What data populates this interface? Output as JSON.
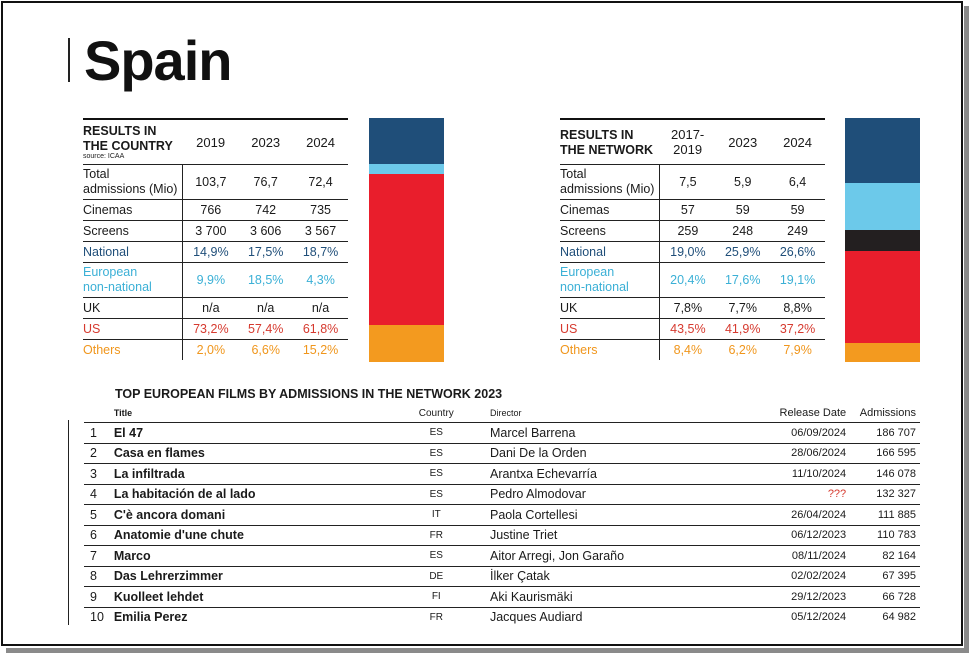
{
  "page": {
    "title": "Spain"
  },
  "country_table": {
    "header": [
      "RESULTS IN",
      "THE COUNTRY"
    ],
    "source": "source: ICAA",
    "years": [
      "2019",
      "2023",
      "2024"
    ],
    "rows": [
      {
        "label": [
          "Total",
          "admissions (Mio)"
        ],
        "values": [
          "103,7",
          "76,7",
          "72,4"
        ],
        "style": "plain"
      },
      {
        "label": [
          "Cinemas"
        ],
        "values": [
          "766",
          "742",
          "735"
        ],
        "style": "plain"
      },
      {
        "label": [
          "Screens"
        ],
        "values": [
          "3 700",
          "3 606",
          "3 567"
        ],
        "style": "plain"
      },
      {
        "label": [
          "National"
        ],
        "values": [
          "14,9%",
          "17,5%",
          "18,7%"
        ],
        "style": "nat"
      },
      {
        "label": [
          "European",
          "non-national"
        ],
        "values": [
          "9,9%",
          "18,5%",
          "4,3%"
        ],
        "style": "eu"
      },
      {
        "label": [
          "UK"
        ],
        "values": [
          "n/a",
          "n/a",
          "n/a"
        ],
        "style": "plain"
      },
      {
        "label": [
          "US"
        ],
        "values": [
          "73,2%",
          "57,4%",
          "61,8%"
        ],
        "style": "us"
      },
      {
        "label": [
          "Others"
        ],
        "values": [
          "2,0%",
          "6,6%",
          "15,2%"
        ],
        "style": "oth"
      }
    ]
  },
  "network_table": {
    "header": [
      "RESULTS IN",
      "THE NETWORK"
    ],
    "years": [
      [
        "2017-",
        "2019"
      ],
      [
        "2023"
      ],
      [
        "2024"
      ]
    ],
    "rows": [
      {
        "label": [
          "Total",
          "admissions (Mio)"
        ],
        "values": [
          "7,5",
          "5,9",
          "6,4"
        ],
        "style": "plain"
      },
      {
        "label": [
          "Cinemas"
        ],
        "values": [
          "57",
          "59",
          "59"
        ],
        "style": "plain"
      },
      {
        "label": [
          "Screens"
        ],
        "values": [
          "259",
          "248",
          "249"
        ],
        "style": "plain"
      },
      {
        "label": [
          "National"
        ],
        "values": [
          "19,0%",
          "25,9%",
          "26,6%"
        ],
        "style": "nat"
      },
      {
        "label": [
          "European",
          "non-national"
        ],
        "values": [
          "20,4%",
          "17,6%",
          "19,1%"
        ],
        "style": "eu"
      },
      {
        "label": [
          "UK"
        ],
        "values": [
          "7,8%",
          "7,7%",
          "8,8%"
        ],
        "style": "plain"
      },
      {
        "label": [
          "US"
        ],
        "values": [
          "43,5%",
          "41,9%",
          "37,2%"
        ],
        "style": "us"
      },
      {
        "label": [
          "Others"
        ],
        "values": [
          "8,4%",
          "6,2%",
          "7,9%"
        ],
        "style": "oth"
      }
    ]
  },
  "colors": {
    "national": "#1f4e79",
    "european": "#6cc9ea",
    "uk": "#231f20",
    "us": "#e91e2c",
    "others": "#f39a1f"
  },
  "stacked_bars": {
    "country": [
      {
        "segment": "national",
        "share": 18.7
      },
      {
        "segment": "european",
        "share": 4.3
      },
      {
        "segment": "us",
        "share": 61.8
      },
      {
        "segment": "others",
        "share": 15.2
      }
    ],
    "network": [
      {
        "segment": "national",
        "share": 26.6
      },
      {
        "segment": "european",
        "share": 19.1
      },
      {
        "segment": "uk",
        "share": 8.8
      },
      {
        "segment": "us",
        "share": 37.2
      },
      {
        "segment": "others",
        "share": 7.9
      }
    ]
  },
  "films": {
    "heading": "TOP EUROPEAN FILMS BY ADMISSIONS IN THE NETWORK 2023",
    "columns": {
      "title": "Title",
      "country": "Country",
      "director": "Director",
      "release": "Release Date",
      "admissions": "Admissions"
    },
    "rows": [
      {
        "rank": "1",
        "title": "El 47",
        "country": "ES",
        "director": "Marcel Barrena",
        "release": "06/09/2024",
        "admissions": "186 707"
      },
      {
        "rank": "2",
        "title": "Casa en flames",
        "country": "ES",
        "director": "Dani De la Orden",
        "release": "28/06/2024",
        "admissions": "166 595"
      },
      {
        "rank": "3",
        "title": "La infiltrada",
        "country": "ES",
        "director": "Arantxa Echevarría",
        "release": "11/10/2024",
        "admissions": "146 078"
      },
      {
        "rank": "4",
        "title": "La habitación de al lado",
        "country": "ES",
        "director": "Pedro Almodovar",
        "release": "???",
        "admissions": "132 327"
      },
      {
        "rank": "5",
        "title": "C'è ancora domani",
        "country": "IT",
        "director": "Paola Cortellesi",
        "release": "26/04/2024",
        "admissions": "111 885"
      },
      {
        "rank": "6",
        "title": "Anatomie d'une chute",
        "country": "FR",
        "director": "Justine Triet",
        "release": "06/12/2023",
        "admissions": "110 783"
      },
      {
        "rank": "7",
        "title": "Marco",
        "country": "ES",
        "director": "Aitor Arregi, Jon Garaño",
        "release": "08/11/2024",
        "admissions": "82 164"
      },
      {
        "rank": "8",
        "title": "Das Lehrerzimmer",
        "country": "DE",
        "director": "İlker Çatak",
        "release": "02/02/2024",
        "admissions": "67 395"
      },
      {
        "rank": "9",
        "title": "Kuolleet lehdet",
        "country": "FI",
        "director": "Aki Kaurismäki",
        "release": "29/12/2023",
        "admissions": "66 728"
      },
      {
        "rank": "10",
        "title": "Emilia Perez",
        "country": "FR",
        "director": "Jacques Audiard",
        "release": "05/12/2024",
        "admissions": "64 982"
      }
    ]
  }
}
